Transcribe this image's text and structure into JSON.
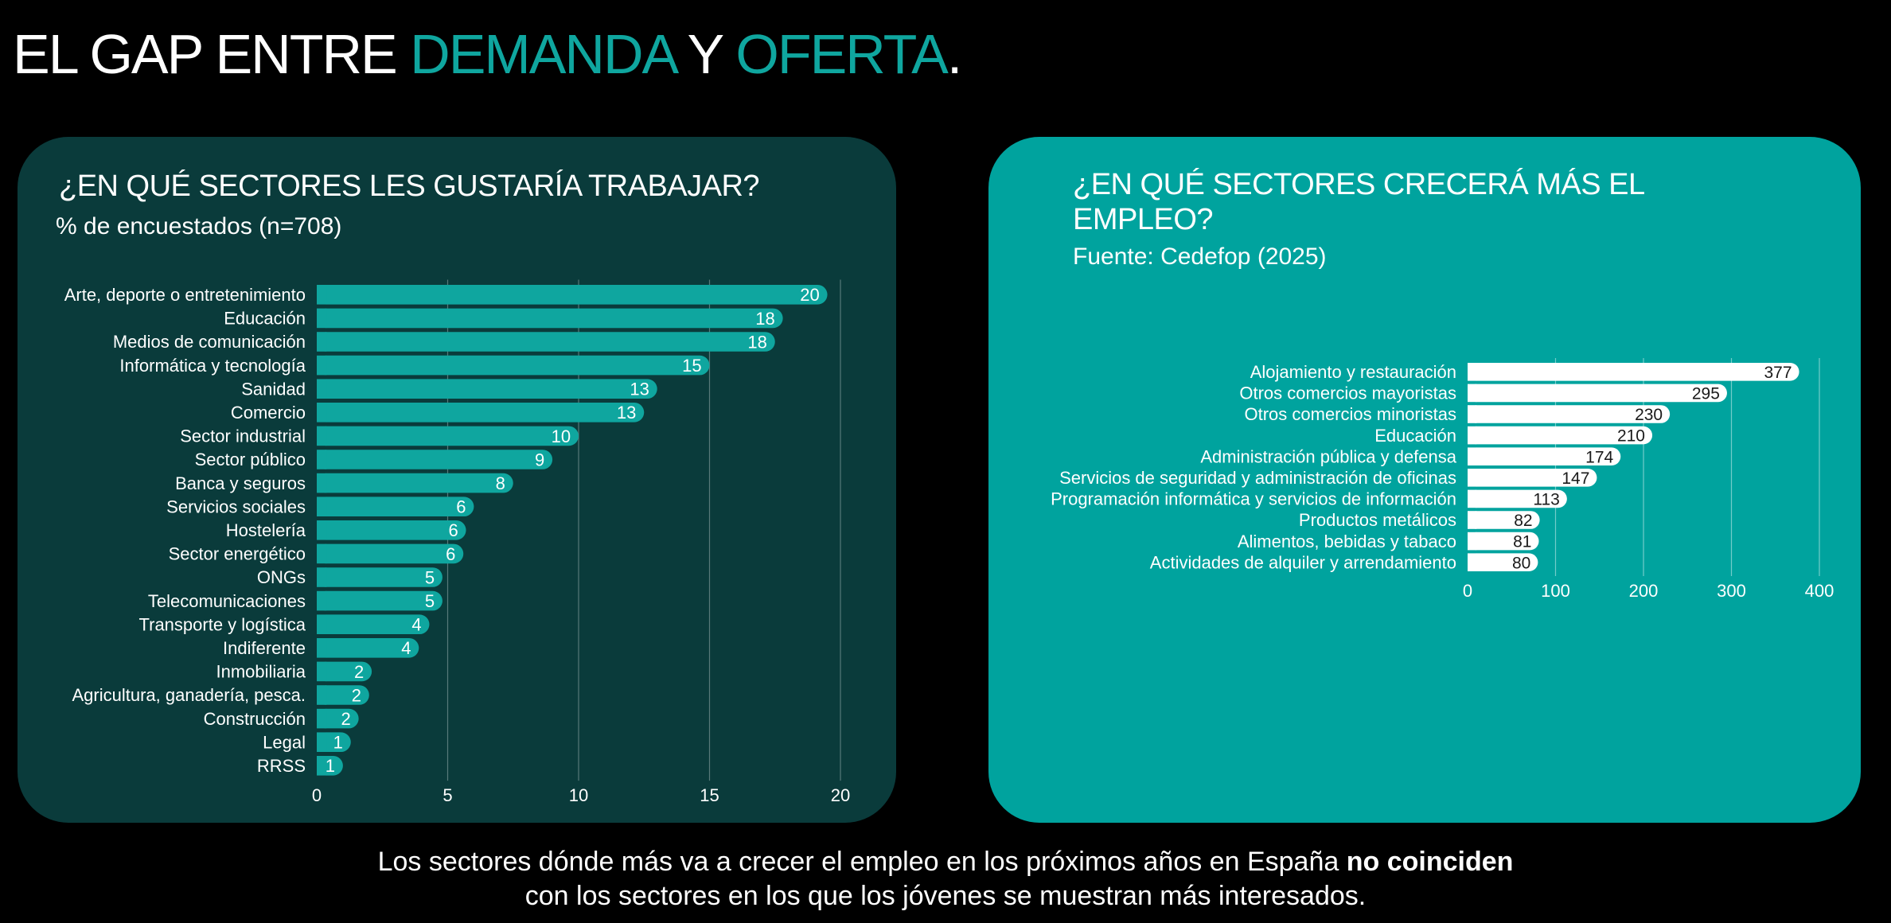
{
  "colors": {
    "background": "#000000",
    "accent": "#0fa69f",
    "panel_left": "#0a3b3b",
    "panel_right": "#00a39e",
    "bar_left": "#0fa69f",
    "bar_right": "#ffffff",
    "text": "#ffffff"
  },
  "header": {
    "title_part1": "EL GAP ENTRE ",
    "title_accent1": "DEMANDA",
    "title_part2": " Y ",
    "title_accent2": "OFERTA",
    "title_end": "."
  },
  "left_panel": {
    "heading": "¿EN QUÉ SECTORES LES GUSTARÍA TRABAJAR?",
    "subtitle": "% de encuestados (n=708)"
  },
  "right_panel": {
    "heading": "¿EN QUÉ SECTORES CRECERÁ MÁS EL EMPLEO?",
    "subtitle": "Fuente: Cedefop (2025)"
  },
  "footer": {
    "line1_prefix": "Los sectores dónde más va a crecer el empleo en los próximos años en España ",
    "line1_bold": "no coinciden",
    "line2": "con los sectores en los que los jóvenes se muestran más interesados."
  },
  "chart_data": [
    {
      "type": "bar",
      "orientation": "horizontal",
      "categories": [
        "Arte, deporte o entretenimiento",
        "Educación",
        "Medios de comunicación",
        "Informática y tecnología",
        "Sanidad",
        "Comercio",
        "Sector industrial",
        "Sector público",
        "Banca y seguros",
        "Servicios sociales",
        "Hostelería",
        "Sector energético",
        "ONGs",
        "Telecomunicaciones",
        "Transporte y logística",
        "Indiferente",
        "Inmobiliaria",
        "Agricultura, ganadería, pesca.",
        "Construcción",
        "Legal",
        "RRSS"
      ],
      "values": [
        19.5,
        17.8,
        17.5,
        15,
        13,
        12.5,
        10,
        9,
        7.5,
        6,
        5.7,
        5.6,
        4.8,
        4.8,
        4.3,
        3.9,
        2.1,
        2,
        1.6,
        1.3,
        1
      ],
      "labels": [
        "20",
        "18",
        "18",
        "15",
        "13",
        "13",
        "10",
        "9",
        "8",
        "6",
        "6",
        "6",
        "5",
        "5",
        "4",
        "4",
        "2",
        "2",
        "2",
        "1",
        "1"
      ],
      "xlim": [
        0,
        20
      ],
      "xticks": [
        0,
        5,
        10,
        15,
        20
      ],
      "grid": true
    },
    {
      "type": "bar",
      "orientation": "horizontal",
      "categories": [
        "Alojamiento y restauración",
        "Otros comercios mayoristas",
        "Otros comercios minoristas",
        "Educación",
        "Administración pública y defensa",
        "Servicios de seguridad y administración de oficinas",
        "Programación informática y servicios de información",
        "Productos metálicos",
        "Alimentos, bebidas y tabaco",
        "Actividades de alquiler y arrendamiento"
      ],
      "values": [
        377,
        295,
        230,
        210,
        174,
        147,
        113,
        82,
        81,
        80
      ],
      "labels": [
        "377",
        "295",
        "230",
        "210",
        "174",
        "147",
        "113",
        "82",
        "81",
        "80"
      ],
      "xlim": [
        0,
        400
      ],
      "xticks": [
        0,
        100,
        200,
        300,
        400
      ],
      "grid": true
    }
  ]
}
